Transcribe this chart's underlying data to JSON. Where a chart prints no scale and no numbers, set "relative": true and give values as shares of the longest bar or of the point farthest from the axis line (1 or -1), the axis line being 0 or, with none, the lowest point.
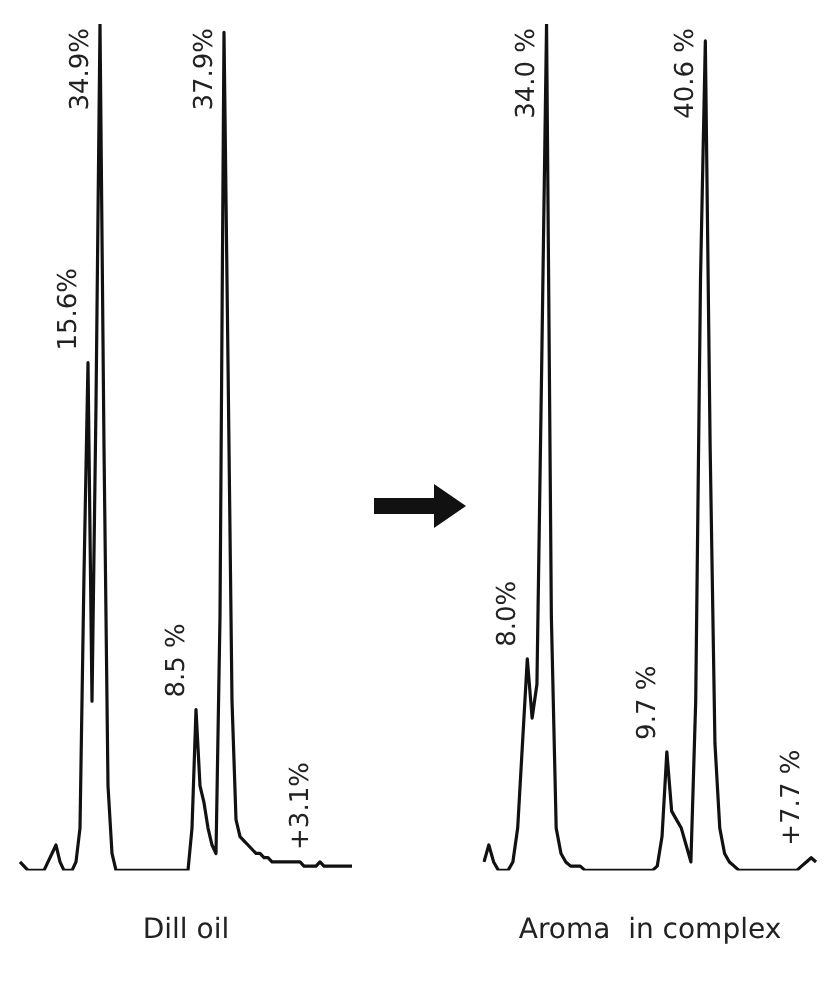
{
  "chart_data": [
    {
      "type": "line",
      "relative": true,
      "tick_labels": false,
      "marker": "none",
      "xlabel": "Dill oil",
      "annotations": [
        "15.6%",
        "34.9%",
        "8.5 %",
        "37.9%",
        "+3.1%"
      ],
      "categories": [
        null,
        null,
        null,
        null,
        null,
        null,
        null,
        null,
        null,
        null,
        null,
        null,
        null,
        null,
        null,
        null,
        null,
        null,
        null,
        null,
        null,
        null,
        null,
        null,
        null,
        null,
        null,
        null,
        null,
        null,
        null,
        null,
        null,
        null,
        null,
        null,
        null,
        null,
        null,
        null,
        null,
        null,
        null,
        null,
        null,
        null,
        null,
        null,
        null,
        null,
        null,
        null,
        null,
        null,
        null,
        null,
        null,
        null,
        null,
        null,
        null,
        null,
        null,
        null,
        null,
        null,
        null,
        null,
        null,
        null,
        null,
        null,
        null,
        null,
        null,
        null,
        null,
        null,
        null,
        null,
        null,
        null,
        null,
        null
      ],
      "series": [
        {
          "color": "#111111",
          "values": [
            0.01,
            0.005,
            0,
            0,
            0,
            0,
            0,
            0.01,
            0.02,
            0.03,
            0.01,
            0,
            0,
            0,
            0.01,
            0.05,
            0.35,
            0.6,
            0.2,
            0.55,
            1,
            0.5,
            0.1,
            0.02,
            0,
            0,
            0,
            0,
            0,
            0,
            0,
            0,
            0,
            0,
            0,
            0,
            0,
            0,
            0,
            0,
            0,
            0,
            0,
            0.05,
            0.19,
            0.1,
            0.08,
            0.05,
            0.03,
            0.02,
            0.3,
            0.99,
            0.6,
            0.2,
            0.06,
            0.04,
            0.035,
            0.03,
            0.025,
            0.02,
            0.02,
            0.015,
            0.015,
            0.01,
            0.01,
            0.01,
            0.01,
            0.01,
            0.01,
            0.01,
            0.01,
            0.005,
            0.005,
            0.005,
            0.005,
            0.01,
            0.005,
            0.005,
            0.005,
            0.005,
            0.005,
            0.005,
            0.005,
            0.005
          ]
        }
      ]
    },
    {
      "type": "line",
      "relative": true,
      "tick_labels": false,
      "marker": "none",
      "xlabel": "Aroma  in complex",
      "annotations": [
        "8.0%",
        "34.0 %",
        "9.7 %",
        "40.6 %",
        "+7.7 %"
      ],
      "categories": [
        null,
        null,
        null,
        null,
        null,
        null,
        null,
        null,
        null,
        null,
        null,
        null,
        null,
        null,
        null,
        null,
        null,
        null,
        null,
        null,
        null,
        null,
        null,
        null,
        null,
        null,
        null,
        null,
        null,
        null,
        null,
        null,
        null,
        null,
        null,
        null,
        null,
        null,
        null,
        null,
        null,
        null,
        null,
        null,
        null,
        null,
        null,
        null,
        null,
        null,
        null,
        null,
        null,
        null,
        null,
        null,
        null,
        null,
        null,
        null,
        null,
        null,
        null,
        null,
        null,
        null,
        null,
        null,
        null,
        null
      ],
      "series": [
        {
          "color": "#111111",
          "values": [
            0.01,
            0.03,
            0.01,
            0,
            0,
            0,
            0.01,
            0.05,
            0.15,
            0.25,
            0.18,
            0.22,
            0.6,
            1,
            0.3,
            0.05,
            0.02,
            0.01,
            0.005,
            0.005,
            0.005,
            0,
            0,
            0,
            0,
            0,
            0,
            0,
            0,
            0,
            0,
            0,
            0,
            0,
            0,
            0,
            0.005,
            0.04,
            0.14,
            0.07,
            0.06,
            0.05,
            0.03,
            0.01,
            0.2,
            0.7,
            0.98,
            0.5,
            0.15,
            0.05,
            0.02,
            0.01,
            0.005,
            0,
            0,
            0,
            0,
            0,
            0,
            0,
            0,
            0,
            0,
            0,
            0,
            0,
            0.005,
            0.01,
            0.015,
            0.01
          ]
        }
      ]
    }
  ]
}
